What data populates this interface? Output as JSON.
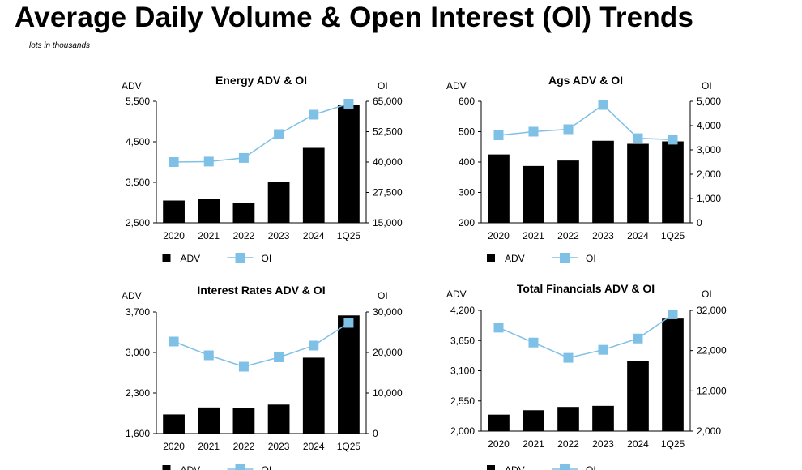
{
  "page": {
    "title": "Average Daily Volume & Open Interest (OI) Trends",
    "subtitle": "lots in thousands"
  },
  "colors": {
    "bar": "#000000",
    "line": "#7FC0E6",
    "marker": "#7FC0E6",
    "axis": "#000000"
  },
  "chart_data": [
    {
      "type": "bar+line",
      "title": "Energy ADV & OI",
      "left_axis_label": "ADV",
      "right_axis_label": "OI",
      "categories": [
        "2020",
        "2021",
        "2022",
        "2023",
        "2024",
        "1Q25"
      ],
      "series": [
        {
          "name": "ADV",
          "kind": "bar",
          "axis": "left",
          "values": [
            3050,
            3100,
            3000,
            3500,
            4350,
            5400
          ]
        },
        {
          "name": "OI",
          "kind": "line",
          "axis": "right",
          "values": [
            40000,
            40200,
            41700,
            51500,
            59500,
            64000
          ]
        }
      ],
      "left_ylim": [
        2500,
        5500
      ],
      "left_ticks": [
        2500,
        3500,
        4500,
        5500
      ],
      "left_tick_labels": [
        "2,500",
        "3,500",
        "4,500",
        "5,500"
      ],
      "right_ylim": [
        15000,
        65000
      ],
      "right_ticks": [
        15000,
        27500,
        40000,
        52500,
        65000
      ],
      "right_tick_labels": [
        "15,000",
        "27,500",
        "40,000",
        "52,500",
        "65,000"
      ],
      "legend": [
        "ADV",
        "OI"
      ],
      "legend_position": "bottom"
    },
    {
      "type": "bar+line",
      "title": "Ags ADV & OI",
      "left_axis_label": "ADV",
      "right_axis_label": "OI",
      "categories": [
        "2020",
        "2021",
        "2022",
        "2023",
        "2024",
        "1Q25"
      ],
      "series": [
        {
          "name": "ADV",
          "kind": "bar",
          "axis": "left",
          "values": [
            425,
            387,
            405,
            470,
            460,
            468
          ]
        },
        {
          "name": "OI",
          "kind": "line",
          "axis": "right",
          "values": [
            3600,
            3750,
            3850,
            4850,
            3480,
            3420
          ]
        }
      ],
      "left_ylim": [
        200,
        600
      ],
      "left_ticks": [
        200,
        300,
        400,
        500,
        600
      ],
      "left_tick_labels": [
        "200",
        "300",
        "400",
        "500",
        "600"
      ],
      "right_ylim": [
        0,
        5000
      ],
      "right_ticks": [
        0,
        1000,
        2000,
        3000,
        4000,
        5000
      ],
      "right_tick_labels": [
        "0",
        "1,000",
        "2,000",
        "3,000",
        "4,000",
        "5,000"
      ],
      "legend": [
        "ADV",
        "OI"
      ],
      "legend_position": "bottom"
    },
    {
      "type": "bar+line",
      "title": "Interest Rates ADV & OI",
      "left_axis_label": "ADV",
      "right_axis_label": "OI",
      "categories": [
        "2020",
        "2021",
        "2022",
        "2023",
        "2024",
        "1Q25"
      ],
      "series": [
        {
          "name": "ADV",
          "kind": "bar",
          "axis": "left",
          "values": [
            1930,
            2050,
            2040,
            2100,
            2910,
            3640
          ]
        },
        {
          "name": "OI",
          "kind": "line",
          "axis": "right",
          "values": [
            22700,
            19300,
            16500,
            18800,
            21700,
            27300
          ]
        }
      ],
      "left_ylim": [
        1600,
        3700
      ],
      "left_ticks": [
        1600,
        2300,
        3000,
        3700
      ],
      "left_tick_labels": [
        "1,600",
        "2,300",
        "3,000",
        "3,700"
      ],
      "right_ylim": [
        0,
        30000
      ],
      "right_ticks": [
        0,
        10000,
        20000,
        30000
      ],
      "right_tick_labels": [
        "0",
        "10,000",
        "20,000",
        "30,000"
      ],
      "legend": [
        "ADV",
        "OI"
      ],
      "legend_position": "bottom"
    },
    {
      "type": "bar+line",
      "title": "Total Financials ADV & OI",
      "left_axis_label": "ADV",
      "right_axis_label": "OI",
      "categories": [
        "2020",
        "2021",
        "2022",
        "2023",
        "2024",
        "1Q25"
      ],
      "series": [
        {
          "name": "ADV",
          "kind": "bar",
          "axis": "left",
          "values": [
            2300,
            2380,
            2440,
            2460,
            3270,
            4050
          ]
        },
        {
          "name": "OI",
          "kind": "line",
          "axis": "right",
          "values": [
            27700,
            24000,
            20200,
            22200,
            25000,
            31000
          ]
        }
      ],
      "left_ylim": [
        2000,
        4200
      ],
      "left_ticks": [
        2000,
        2550,
        3100,
        3650,
        4200
      ],
      "left_tick_labels": [
        "2,000",
        "2,550",
        "3,100",
        "3,650",
        "4,200"
      ],
      "right_ylim": [
        2000,
        32000
      ],
      "right_ticks": [
        2000,
        12000,
        22000,
        32000
      ],
      "right_tick_labels": [
        "2,000",
        "12,000",
        "22,000",
        "32,000"
      ],
      "legend": [
        "ADV",
        "OI"
      ],
      "legend_position": "bottom"
    }
  ]
}
